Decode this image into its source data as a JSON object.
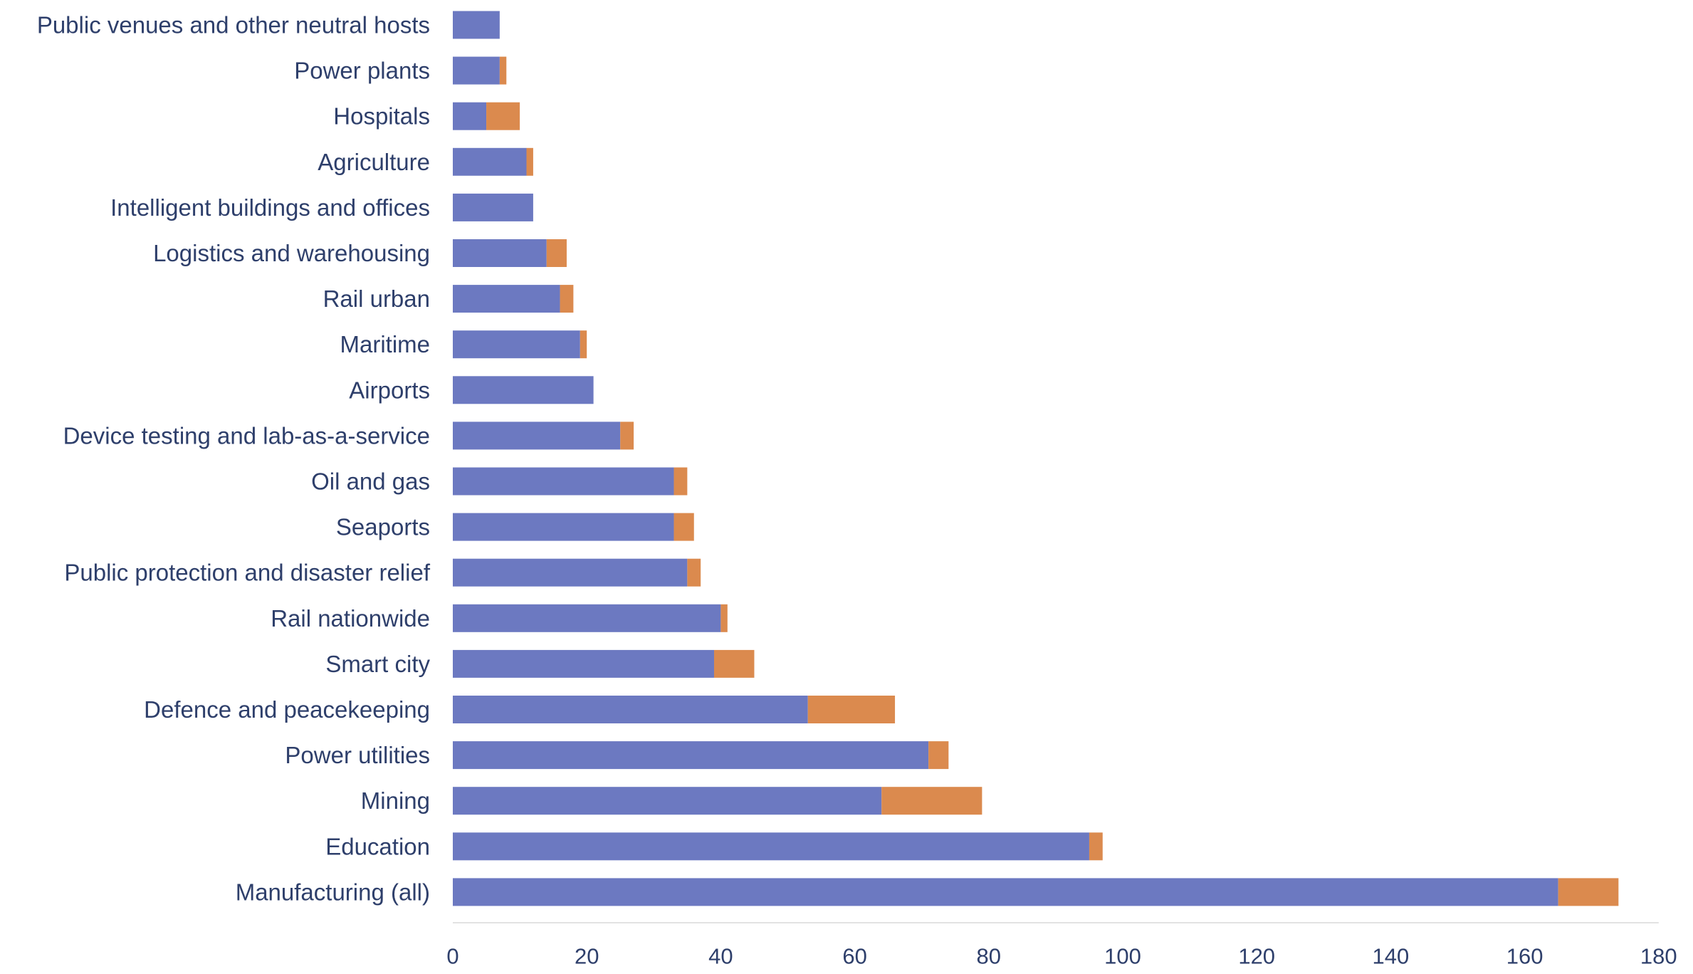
{
  "colors": {
    "series_1": "#6c79c1",
    "series_2": "#db8a4e",
    "axis": "#d9d9d9",
    "text": "#2e3f6b"
  },
  "chart_data": {
    "type": "bar",
    "orientation": "horizontal",
    "stacked": true,
    "categories": [
      "Public venues and other neutral hosts",
      "Power plants",
      "Hospitals",
      "Agriculture",
      "Intelligent buildings and offices",
      "Logistics and warehousing",
      "Rail urban",
      "Maritime",
      "Airports",
      "Device testing and lab-as-a-service",
      "Oil and gas",
      "Seaports",
      "Public protection and disaster relief",
      "Rail nationwide",
      "Smart city",
      "Defence and peacekeeping",
      "Power utilities",
      "Mining",
      "Education",
      "Manufacturing (all)"
    ],
    "series": [
      {
        "values": [
          7,
          7,
          5,
          11,
          12,
          14,
          16,
          19,
          21,
          25,
          33,
          33,
          35,
          40,
          39,
          53,
          71,
          64,
          95,
          165
        ]
      },
      {
        "values": [
          0,
          1,
          5,
          1,
          0,
          3,
          2,
          1,
          0,
          2,
          2,
          3,
          2,
          1,
          6,
          13,
          3,
          15,
          2,
          9
        ]
      }
    ],
    "xlim": [
      0,
      180
    ],
    "xticks": [
      "0",
      "20",
      "40",
      "60",
      "80",
      "100",
      "120",
      "140",
      "160",
      "180"
    ],
    "xlabel": "",
    "ylabel": "",
    "title": "",
    "grid": false,
    "legend": "none"
  }
}
